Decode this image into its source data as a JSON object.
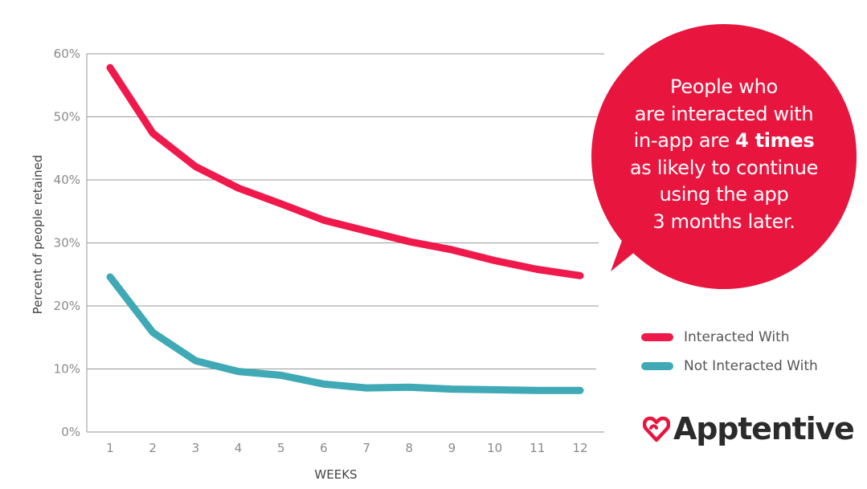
{
  "chart_data": {
    "type": "line",
    "x": [
      1,
      2,
      3,
      4,
      5,
      6,
      7,
      8,
      9,
      10,
      11,
      12
    ],
    "series": [
      {
        "name": "Interacted With",
        "values": [
          57.8,
          47.4,
          42.1,
          38.7,
          36.2,
          33.6,
          31.9,
          30.2,
          28.9,
          27.2,
          25.8,
          24.8
        ]
      },
      {
        "name": "Not Interacted With",
        "values": [
          24.6,
          15.8,
          11.3,
          9.6,
          9.0,
          7.6,
          7.0,
          7.1,
          6.8,
          6.7,
          6.6,
          6.6
        ]
      }
    ],
    "xlabel": "WEEKS",
    "ylabel": "Percent of people retained",
    "xticks": [
      "1",
      "2",
      "3",
      "4",
      "5",
      "6",
      "7",
      "8",
      "9",
      "10",
      "11",
      "12"
    ],
    "yticks": [
      "0%",
      "10%",
      "20%",
      "30%",
      "40%",
      "50%",
      "60%"
    ],
    "ylim": [
      0,
      60
    ],
    "grid": true,
    "legend_position": "right"
  },
  "colors": {
    "interacted": "#f0194c",
    "not_interacted": "#3fa9b5",
    "bubble": "#e8163f"
  },
  "callout": {
    "line1": "People who",
    "line2": "are interacted with",
    "line3_prefix": "in-app are ",
    "line3_bold": "4 times",
    "line4": "as likely to continue",
    "line5": "using the app",
    "line6": "3 months later."
  },
  "logo": {
    "text": "Apptentive",
    "icon": "heart-logo-icon"
  }
}
